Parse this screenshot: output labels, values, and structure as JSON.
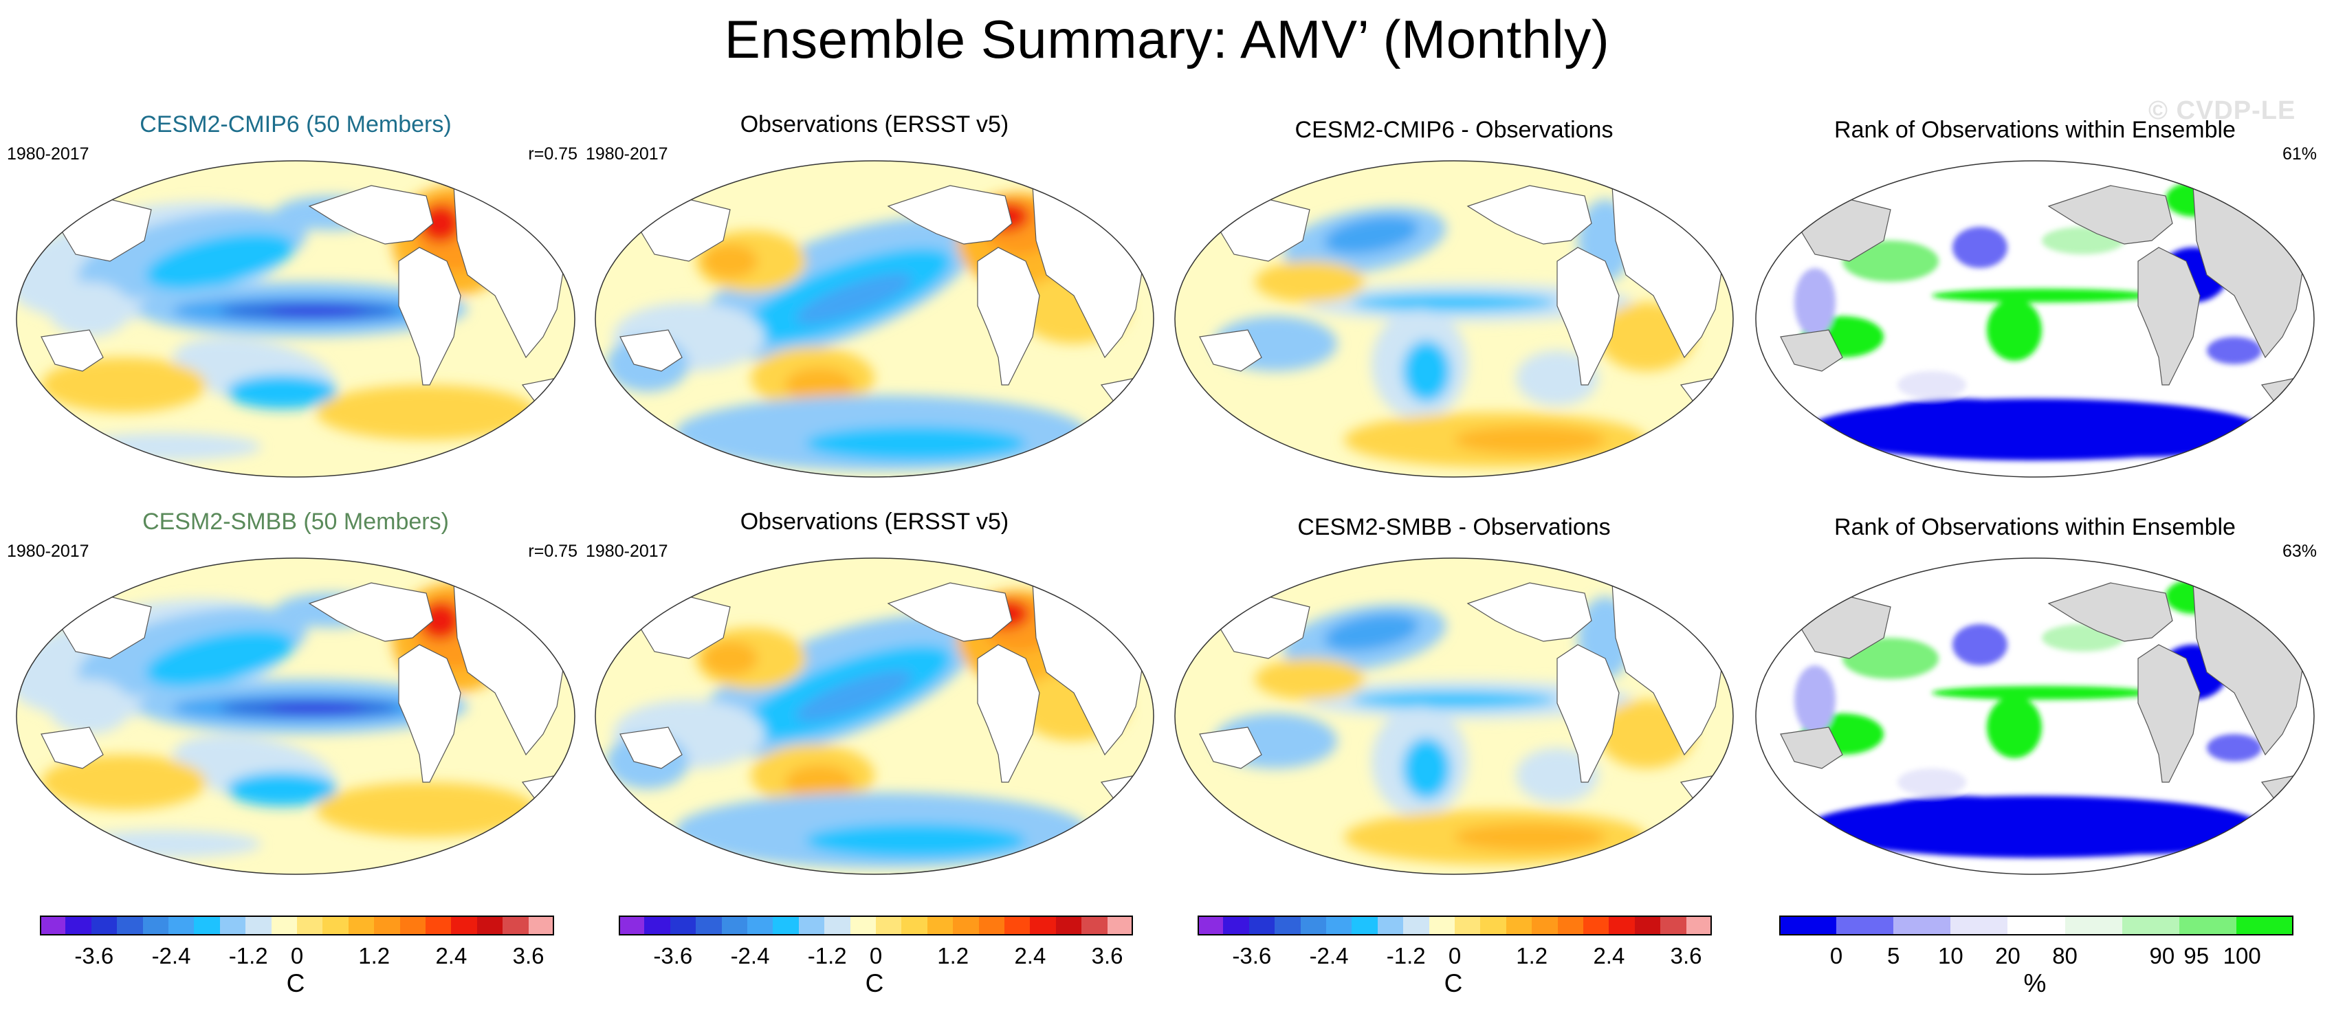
{
  "title": "Ensemble Summary: AMV’ (Monthly)",
  "watermark": "© CVDP-LE",
  "rows": [
    {
      "panels": [
        {
          "title": "CESM2-CMIP6 (50 Members)",
          "title_color": "#1d6e8c",
          "left_label": "1980-2017",
          "right_label": "r=0.75",
          "kind": "mean"
        },
        {
          "title": "Observations (ERSST v5)",
          "title_color": "#000000",
          "left_label": "1980-2017",
          "right_label": "",
          "kind": "obs"
        },
        {
          "title": "CESM2-CMIP6 - Observations",
          "title_color": "#000000",
          "left_label": "",
          "right_label": "",
          "kind": "diff"
        },
        {
          "title": "Rank of Observations within Ensemble",
          "title_color": "#000000",
          "left_label": "",
          "right_label": "61%",
          "kind": "rank"
        }
      ]
    },
    {
      "panels": [
        {
          "title": "CESM2-SMBB (50 Members)",
          "title_color": "#5a8a5a",
          "left_label": "1980-2017",
          "right_label": "r=0.75",
          "kind": "mean"
        },
        {
          "title": "Observations (ERSST v5)",
          "title_color": "#000000",
          "left_label": "1980-2017",
          "right_label": "",
          "kind": "obs"
        },
        {
          "title": "CESM2-SMBB - Observations",
          "title_color": "#000000",
          "left_label": "",
          "right_label": "",
          "kind": "diff"
        },
        {
          "title": "Rank of Observations within Ensemble",
          "title_color": "#000000",
          "left_label": "",
          "right_label": "63%",
          "kind": "rank"
        }
      ]
    }
  ],
  "colorbars": [
    {
      "unit": "C",
      "tick_labels": [
        "-3.6",
        "-2.4",
        "-1.2",
        "0",
        "1.2",
        "2.4",
        "3.6"
      ]
    },
    {
      "unit": "C",
      "tick_labels": [
        "-3.6",
        "-2.4",
        "-1.2",
        "0",
        "1.2",
        "2.4",
        "3.6"
      ]
    },
    {
      "unit": "C",
      "tick_labels": [
        "-3.6",
        "-2.4",
        "-1.2",
        "0",
        "1.2",
        "2.4",
        "3.6"
      ]
    },
    {
      "unit": "%",
      "tick_labels": [
        "0",
        "5",
        "10",
        "20",
        "80",
        "90",
        "95",
        "100"
      ]
    }
  ],
  "palettes": {
    "temperature": [
      "#8b2be2",
      "#3a14e0",
      "#2436d6",
      "#2f63db",
      "#3a8ce6",
      "#42a5f5",
      "#1ec2ff",
      "#90caf9",
      "#cfe5f5",
      "#fffbc4",
      "#ffe57a",
      "#ffd54a",
      "#ffb627",
      "#ff9a1a",
      "#ff7a10",
      "#ff4a0a",
      "#ee1c0c",
      "#cc1010",
      "#d94a4a",
      "#f7a6a6"
    ],
    "rank": [
      "#0000ee",
      "#6a6af5",
      "#b2b2f8",
      "#e6e6fa",
      "#ffffff",
      "#e8f8e8",
      "#b8f5b8",
      "#7cf07c",
      "#19f019"
    ]
  }
}
